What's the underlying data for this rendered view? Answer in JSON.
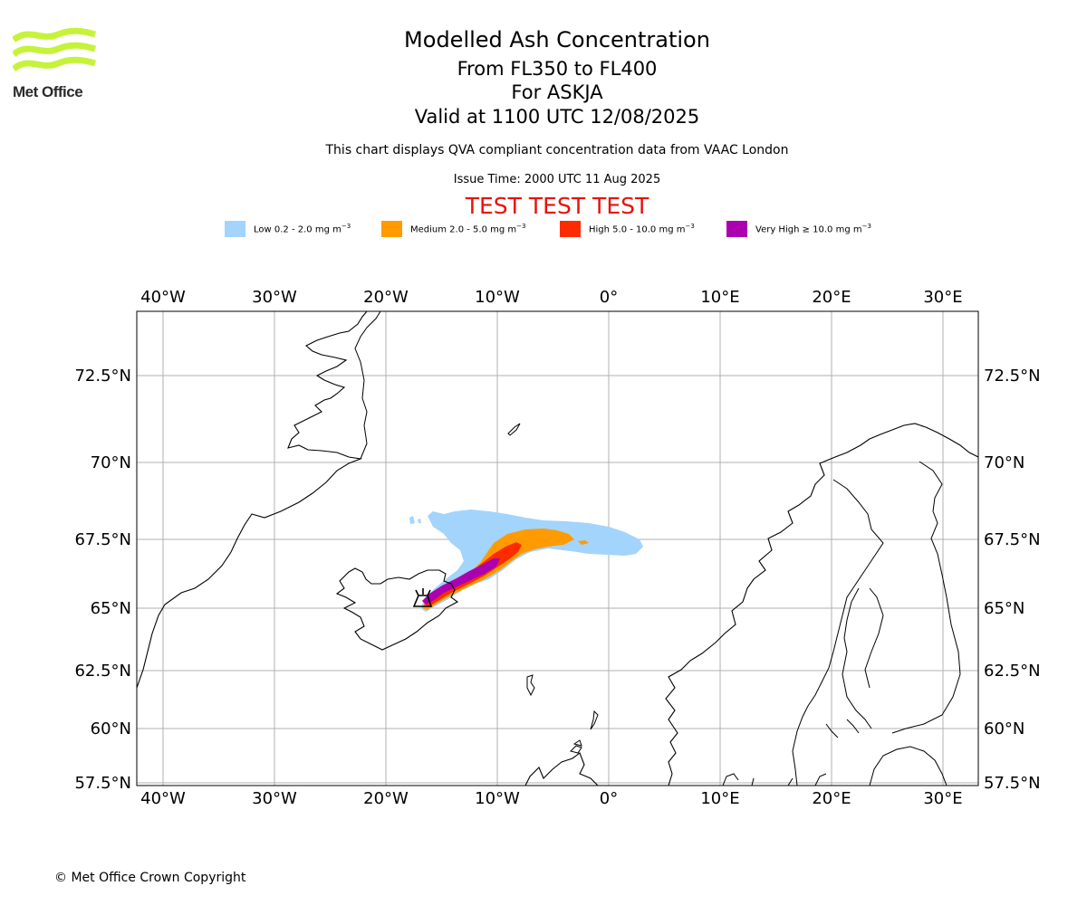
{
  "header": {
    "logo_text": "Met Office",
    "title": "Modelled Ash Concentration",
    "flight_levels": "From FL350 to FL400",
    "volcano": "For ASKJA",
    "valid_time": "Valid at 1100 UTC 12/08/2025",
    "subtitle": "This chart displays QVA compliant concentration data from VAAC London",
    "issue_time": "Issue Time: 2000 UTC 11 Aug 2025",
    "test_banner": "TEST TEST TEST"
  },
  "legend": {
    "unit_base": "mg m",
    "unit_exp": "−3",
    "items": [
      {
        "label": "Low 0.2 - 2.0 ",
        "color": "#a3d4fc"
      },
      {
        "label": "Medium 2.0 - 5.0 ",
        "color": "#ff9b00"
      },
      {
        "label": "High 5.0 - 10.0 ",
        "color": "#ff2b00"
      },
      {
        "label": "Very High  ≥  10.0 ",
        "color": "#aa00b0"
      }
    ]
  },
  "map": {
    "lon_range": [
      -42.5,
      33.0
    ],
    "lat_range": [
      57.5,
      74.5
    ],
    "lon_ticks": [
      "40°W",
      "30°W",
      "20°W",
      "10°W",
      "0°",
      "10°E",
      "20°E",
      "30°E"
    ],
    "lat_ticks": [
      "72.5°N",
      "70°N",
      "67.5°N",
      "65°N",
      "62.5°N",
      "60°N",
      "57.5°N"
    ],
    "gridline_color": "#b0b0b0",
    "coastline_color": "#000000",
    "volcano_symbol": "volcano-icon"
  },
  "footer": {
    "copyright": "© Met Office Crown Copyright"
  }
}
